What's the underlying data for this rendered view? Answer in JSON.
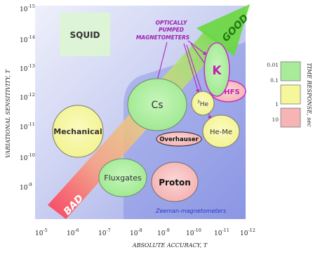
{
  "chart_data": {
    "type": "bubble-map",
    "xlabel": "ABSOLUTE ACCURACY, T",
    "ylabel": "VARIATIONAL SENSITIVITY, T",
    "x_scale": "log",
    "y_scale": "log",
    "x_ticks": [
      {
        "base": "10",
        "exp": "-5"
      },
      {
        "base": "10",
        "exp": "-6"
      },
      {
        "base": "10",
        "exp": "-7"
      },
      {
        "base": "10",
        "exp": "-8"
      },
      {
        "base": "10",
        "exp": "-9"
      },
      {
        "base": "10",
        "exp": "-10"
      },
      {
        "base": "10",
        "exp": "-11"
      },
      {
        "base": "10",
        "exp": "-12"
      }
    ],
    "y_ticks": [
      {
        "base": "10",
        "exp": "-15"
      },
      {
        "base": "10",
        "exp": "-14"
      },
      {
        "base": "10",
        "exp": "-13"
      },
      {
        "base": "10",
        "exp": "-12"
      },
      {
        "base": "10",
        "exp": "-11"
      },
      {
        "base": "10",
        "exp": "-10"
      },
      {
        "base": "10",
        "exp": "-9"
      }
    ],
    "xlim": [
      -5,
      -12
    ],
    "ylim": [
      -8.5,
      -15
    ],
    "regions": [
      {
        "label": "SQUID",
        "x_range": [
          -6.7,
          -7.8
        ],
        "y_range": [
          -13.3,
          -14.8
        ],
        "color": "#d8f2d0"
      },
      {
        "label": "Zeeman-magnetometers",
        "x_range": [
          -8.0,
          -12.0
        ],
        "y_range": [
          -8.5,
          -13.0
        ],
        "color": "#7a86e8"
      }
    ],
    "bubbles": [
      {
        "label": "Mechanical",
        "x": -6.4,
        "y": -11.0,
        "time_response": "0.1"
      },
      {
        "label": "Cs",
        "x": -8.5,
        "y": -12.4,
        "time_response": "0.01"
      },
      {
        "label": "Fluxgates",
        "x": -8.4,
        "y": -9.7,
        "time_response": "0.01"
      },
      {
        "label": "Proton",
        "x": -9.5,
        "y": -9.4,
        "time_response": "10"
      },
      {
        "label": "Overhauser",
        "x": -9.5,
        "y": -11.1,
        "time_response": "10"
      },
      {
        "label": "He-Me",
        "x": -10.8,
        "y": -11.0,
        "time_response": "0.1"
      },
      {
        "label": "3He",
        "x": -10.3,
        "y": -12.2,
        "time_response": "0.1",
        "superscript": "3",
        "main": "He"
      },
      {
        "label": "K-HFS",
        "x": -10.95,
        "y": -12.5,
        "time_response": "10"
      },
      {
        "label": "K",
        "x": -10.75,
        "y": -13.7,
        "time_response": "0.01"
      }
    ],
    "annotations": {
      "optically_pumped": [
        "OPTICALLY",
        "PUMPED",
        "MAGNETOMETERS"
      ],
      "good": "GOOD",
      "bad": "BAD"
    },
    "legend": {
      "position": "right",
      "title": "TIME RESPONSE, sec",
      "entries": [
        {
          "label": "0.01",
          "color": "#a8ec9a"
        },
        {
          "label": "0.1",
          "color": "#f6f69a"
        },
        {
          "label": "1",
          "color": "#f6f69a"
        },
        {
          "label": "10",
          "color": "#f6b4b4"
        }
      ]
    },
    "colors": {
      "0.01": "#a8ec9a",
      "0.1": "#f6f69a",
      "10": "#f6b4b4",
      "bubble_stroke": "#6a6a6a",
      "k_stroke": "#c535c5",
      "k_text": "#c020b0",
      "arrow": "#7fdc50",
      "arrow_red": "#ff4050",
      "panel": "#c9cff0",
      "optical_text": "#a020b0"
    }
  }
}
